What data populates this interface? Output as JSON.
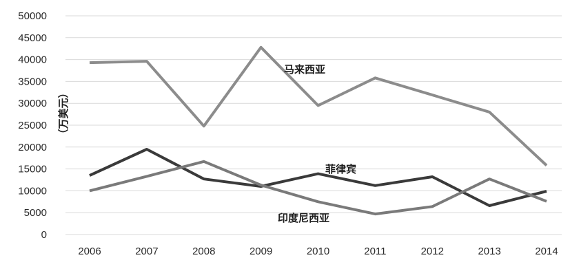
{
  "chart_data": {
    "type": "line",
    "title": "",
    "xlabel": "",
    "ylabel": "（万美元）",
    "ylim": [
      0,
      50000
    ],
    "yticks": [
      "0",
      "5000",
      "10000",
      "15000",
      "20000",
      "25000",
      "30000",
      "35000",
      "40000",
      "45000",
      "50000"
    ],
    "categories": [
      "2006",
      "2007",
      "2008",
      "2009",
      "2010",
      "2011",
      "2012",
      "2013",
      "2014"
    ],
    "grid": true,
    "legend": "none",
    "series": [
      {
        "name": "马来西亚",
        "color": "#8c8c8c",
        "values": [
          39300,
          39600,
          24800,
          42800,
          29500,
          35800,
          31900,
          28000,
          15800
        ]
      },
      {
        "name": "菲律宾",
        "color": "#3a3a3a",
        "values": [
          13500,
          19500,
          12700,
          11000,
          13900,
          11200,
          13200,
          6600,
          9900
        ]
      },
      {
        "name": "印度尼西亚",
        "color": "#7a7a7a",
        "values": [
          10000,
          13300,
          16700,
          11300,
          7500,
          4700,
          6400,
          12700,
          7600
        ]
      }
    ]
  }
}
